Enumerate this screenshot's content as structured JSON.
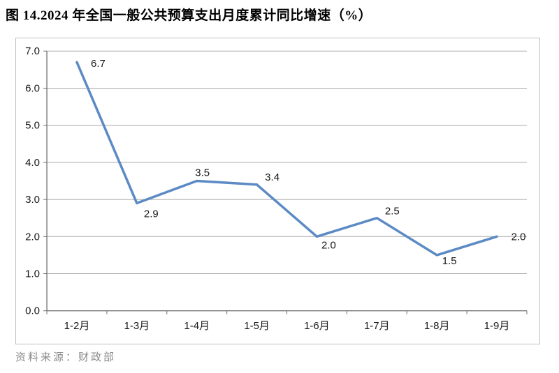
{
  "page": {
    "title": "图 14.2024 年全国一般公共预算支出月度累计同比增速（%）",
    "source_note": "资料来源：财政部"
  },
  "chart_data": {
    "type": "line",
    "title": "图 14.2024 年全国一般公共预算支出月度累计同比增速（%）",
    "categories": [
      "1-2月",
      "1-3月",
      "1-4月",
      "1-5月",
      "1-6月",
      "1-7月",
      "1-8月",
      "1-9月"
    ],
    "values": [
      6.7,
      2.9,
      3.5,
      3.4,
      2.0,
      2.5,
      1.5,
      2.0
    ],
    "data_labels": [
      "6.7",
      "2.9",
      "3.5",
      "3.4",
      "2.0",
      "2.5",
      "1.5",
      "2.0"
    ],
    "ytick_labels": [
      "0.0",
      "1.0",
      "2.0",
      "3.0",
      "4.0",
      "5.0",
      "6.0",
      "7.0"
    ],
    "ylim": [
      0.0,
      7.0
    ],
    "ytick_step": 1.0,
    "xlabel": "",
    "ylabel": "",
    "grid": true,
    "legend": "none",
    "markers": "none",
    "source": "资料来源：财政部",
    "colors": {
      "line": "#5B8AC5",
      "grid": "#A9A9A9",
      "axis": "#6E6E6E",
      "chart_border": "#BFBFBF",
      "label_text": "#1A1A1A",
      "title_text": "#000000",
      "source_text": "#8A8A8A"
    }
  }
}
